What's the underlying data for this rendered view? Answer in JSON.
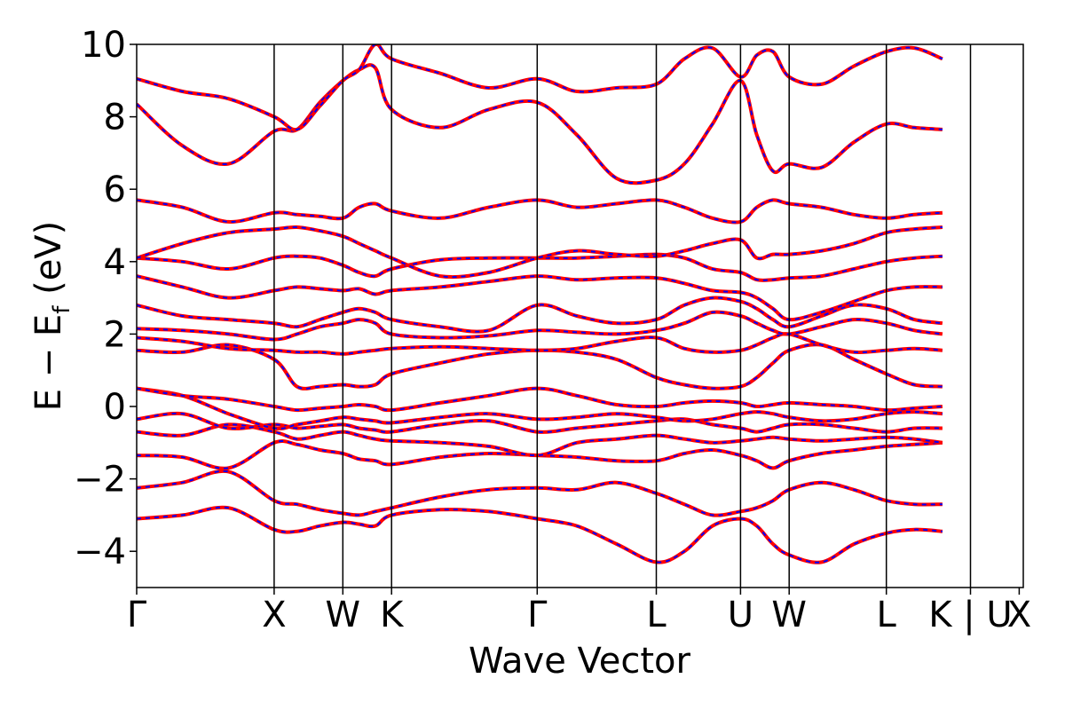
{
  "chart_data": {
    "type": "line",
    "xlabel": "Wave Vector",
    "ylabel_parts": {
      "main": "E  −  E",
      "sub": "f",
      "unit": " (eV)"
    },
    "ylim": [
      -5,
      10
    ],
    "yticks": [
      -4,
      -2,
      0,
      2,
      4,
      6,
      8,
      10
    ],
    "ytick_labels": [
      "−4",
      "−2",
      "0",
      "2",
      "4",
      "6",
      "8",
      "10"
    ],
    "xlim": [
      0,
      6.45
    ],
    "kpoints": [
      {
        "label": "Γ",
        "x": 0.0
      },
      {
        "label": "X",
        "x": 1.0
      },
      {
        "label": "W",
        "x": 1.5
      },
      {
        "label": "K",
        "x": 1.854
      },
      {
        "label": "Γ",
        "x": 2.914
      },
      {
        "label": "L",
        "x": 3.78
      },
      {
        "label": "U",
        "x": 4.393
      },
      {
        "label": "W",
        "x": 4.747
      },
      {
        "label": "L",
        "x": 5.454
      },
      {
        "label": "K | U",
        "x": 6.066
      },
      {
        "label": "X",
        "x": 6.42
      }
    ],
    "line_styles": {
      "primary_color": "#ff0000",
      "overlay_color": "#0000ff",
      "overlay_style": "dashed"
    },
    "grid": false,
    "bands": [
      [
        -3.1,
        -3.0,
        -2.8,
        -3.4,
        -3.45,
        -3.3,
        -3.2,
        -3.25,
        -3.3,
        -3.0,
        -2.85,
        -2.9,
        -3.1,
        -3.3,
        -3.8,
        -4.3,
        -4.0,
        -3.3,
        -3.1,
        -3.3,
        -3.8,
        -4.1,
        -4.3,
        -3.8,
        -3.5,
        -3.4,
        -3.45
      ],
      [
        -2.25,
        -2.1,
        -1.8,
        -2.6,
        -2.7,
        -2.85,
        -2.95,
        -3.0,
        -2.9,
        -2.8,
        -2.5,
        -2.3,
        -2.25,
        -2.3,
        -2.1,
        -2.4,
        -2.7,
        -3.0,
        -2.9,
        -2.8,
        -2.6,
        -2.3,
        -2.1,
        -2.3,
        -2.6,
        -2.7,
        -2.7
      ],
      [
        -1.35,
        -1.4,
        -1.7,
        -1.0,
        -1.05,
        -1.2,
        -1.3,
        -1.45,
        -1.5,
        -1.6,
        -1.4,
        -1.3,
        -1.35,
        -1.4,
        -1.5,
        -1.5,
        -1.3,
        -1.2,
        -1.35,
        -1.5,
        -1.7,
        -1.5,
        -1.3,
        -1.2,
        -1.1,
        -1.05,
        -1.0
      ],
      [
        -0.7,
        -0.8,
        -0.5,
        -0.7,
        -0.9,
        -0.8,
        -0.7,
        -0.8,
        -0.9,
        -0.95,
        -1.0,
        -1.1,
        -1.35,
        -1.0,
        -0.9,
        -0.8,
        -0.9,
        -1.0,
        -0.95,
        -0.9,
        -0.85,
        -0.9,
        -0.95,
        -0.9,
        -0.85,
        -0.9,
        -1.0
      ],
      [
        -0.35,
        -0.2,
        -0.6,
        -0.5,
        -0.6,
        -0.55,
        -0.5,
        -0.6,
        -0.65,
        -0.7,
        -0.5,
        -0.4,
        -0.7,
        -0.6,
        -0.5,
        -0.4,
        -0.35,
        -0.5,
        -0.6,
        -0.7,
        -0.6,
        -0.5,
        -0.5,
        -0.6,
        -0.7,
        -0.6,
        -0.6
      ],
      [
        0.5,
        0.3,
        -0.2,
        -0.6,
        -0.5,
        -0.4,
        -0.3,
        -0.35,
        -0.4,
        -0.45,
        -0.3,
        -0.2,
        -0.35,
        -0.3,
        -0.2,
        -0.3,
        -0.4,
        -0.35,
        -0.2,
        -0.15,
        -0.2,
        -0.3,
        -0.4,
        -0.35,
        -0.2,
        -0.15,
        -0.2
      ],
      [
        0.5,
        0.3,
        0.2,
        0.0,
        -0.1,
        -0.05,
        0.0,
        0.05,
        0.0,
        -0.1,
        0.1,
        0.3,
        0.5,
        0.3,
        0.05,
        0.0,
        0.1,
        0.15,
        0.1,
        0.0,
        0.05,
        0.1,
        0.05,
        0.0,
        -0.1,
        -0.05,
        0.0
      ],
      [
        1.55,
        1.5,
        1.7,
        1.3,
        0.55,
        0.55,
        0.6,
        0.55,
        0.6,
        0.9,
        1.2,
        1.45,
        1.55,
        1.5,
        1.3,
        0.8,
        0.6,
        0.5,
        0.55,
        0.8,
        1.2,
        1.55,
        1.7,
        1.3,
        0.9,
        0.6,
        0.55
      ],
      [
        1.9,
        1.8,
        1.6,
        1.55,
        1.5,
        1.5,
        1.45,
        1.5,
        1.55,
        1.6,
        1.65,
        1.6,
        1.55,
        1.6,
        1.8,
        1.9,
        1.6,
        1.5,
        1.55,
        1.7,
        1.9,
        2.0,
        1.7,
        1.5,
        1.55,
        1.6,
        1.55
      ],
      [
        2.15,
        2.1,
        2.0,
        1.85,
        2.0,
        2.2,
        2.3,
        2.4,
        2.3,
        2.0,
        1.9,
        1.95,
        2.1,
        2.05,
        2.0,
        2.1,
        2.3,
        2.6,
        2.5,
        2.3,
        2.1,
        2.0,
        2.2,
        2.4,
        2.3,
        2.1,
        2.0
      ],
      [
        2.8,
        2.5,
        2.4,
        2.3,
        2.2,
        2.4,
        2.6,
        2.7,
        2.6,
        2.4,
        2.2,
        2.1,
        2.8,
        2.5,
        2.3,
        2.4,
        2.8,
        3.0,
        2.9,
        2.7,
        2.4,
        2.2,
        2.5,
        2.8,
        2.7,
        2.4,
        2.3
      ],
      [
        3.6,
        3.3,
        3.0,
        3.2,
        3.3,
        3.25,
        3.2,
        3.25,
        3.1,
        3.2,
        3.3,
        3.45,
        3.6,
        3.5,
        3.55,
        3.55,
        3.4,
        3.2,
        3.15,
        3.0,
        2.7,
        2.4,
        2.6,
        2.9,
        3.2,
        3.3,
        3.3
      ],
      [
        4.1,
        4.0,
        3.8,
        4.1,
        4.15,
        4.1,
        3.9,
        3.7,
        3.6,
        3.8,
        4.05,
        4.1,
        4.1,
        4.1,
        4.15,
        4.2,
        4.1,
        3.8,
        3.7,
        3.5,
        3.5,
        3.55,
        3.6,
        3.8,
        4.0,
        4.1,
        4.15
      ],
      [
        4.1,
        4.5,
        4.8,
        4.9,
        4.95,
        4.85,
        4.7,
        4.5,
        4.3,
        4.1,
        3.6,
        3.7,
        4.1,
        4.3,
        4.2,
        4.15,
        4.3,
        4.5,
        4.6,
        4.1,
        4.2,
        4.2,
        4.3,
        4.5,
        4.8,
        4.9,
        4.95
      ],
      [
        5.7,
        5.5,
        5.1,
        5.35,
        5.3,
        5.25,
        5.2,
        5.5,
        5.6,
        5.4,
        5.2,
        5.5,
        5.7,
        5.5,
        5.6,
        5.7,
        5.5,
        5.2,
        5.1,
        5.5,
        5.7,
        5.6,
        5.5,
        5.3,
        5.2,
        5.3,
        5.35
      ],
      [
        8.35,
        7.2,
        6.7,
        7.6,
        7.65,
        8.4,
        9.0,
        9.3,
        9.35,
        8.2,
        7.7,
        8.2,
        8.4,
        7.5,
        6.3,
        6.25,
        6.7,
        7.8,
        9.0,
        7.5,
        6.5,
        6.7,
        6.6,
        7.3,
        7.8,
        7.7,
        7.65
      ],
      [
        9.05,
        8.7,
        8.5,
        8.0,
        7.65,
        8.3,
        9.0,
        9.3,
        10.0,
        9.6,
        9.2,
        8.8,
        9.05,
        8.7,
        8.8,
        8.9,
        9.6,
        9.9,
        9.1,
        9.7,
        9.8,
        9.1,
        8.9,
        9.4,
        9.8,
        9.9,
        9.6
      ]
    ]
  }
}
